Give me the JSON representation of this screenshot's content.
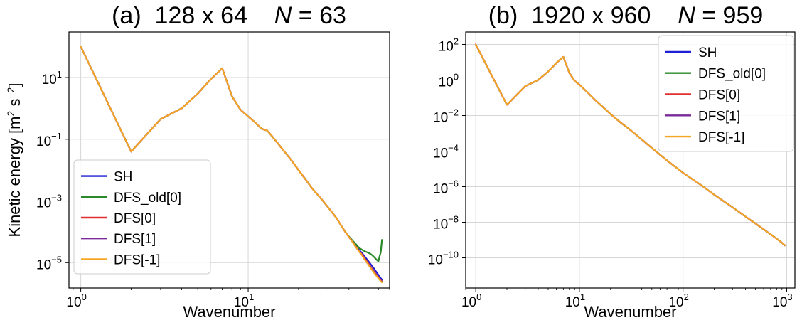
{
  "chart_data": [
    {
      "type": "line",
      "title": "(a)  128 x 64    N = 63",
      "title_parts": {
        "prefix": "(a)  128 x 64    ",
        "var": "N",
        "suffix": " = 63"
      },
      "xlabel": "Wavenumber",
      "ylabel": "Kinetic energy [m² s⁻²]",
      "ylabel_parts": {
        "main": "Kinetic energy [m",
        "sup1": "2",
        "mid": " s",
        "sup2": "−2",
        "end": "]"
      },
      "xscale": "log",
      "yscale": "log",
      "xlim": [
        0.85,
        70
      ],
      "ylim": [
        1.5e-06,
        300
      ],
      "xticks": [
        1,
        10
      ],
      "xtick_labels": [
        {
          "base": "10",
          "exp": "0"
        },
        {
          "base": "10",
          "exp": "1"
        }
      ],
      "yticks": [
        1e-05,
        0.001,
        0.1,
        10
      ],
      "ytick_labels": [
        {
          "base": "10",
          "exp": "−5"
        },
        {
          "base": "10",
          "exp": "−3"
        },
        {
          "base": "10",
          "exp": "−1"
        },
        {
          "base": "10",
          "exp": "1"
        }
      ],
      "grid": true,
      "legend_position": "lower-left",
      "series": [
        {
          "name": "SH",
          "color": "#1f1fd6",
          "x": [
            1,
            2,
            3,
            4,
            5,
            6,
            7,
            8,
            9,
            10,
            11,
            12,
            13,
            14,
            15,
            16,
            18,
            20,
            22,
            24,
            26,
            28,
            30,
            32,
            34,
            36,
            38,
            40,
            42,
            44,
            46,
            48,
            50,
            52,
            54,
            56,
            58,
            60,
            62,
            63
          ],
          "y": [
            100,
            0.04,
            0.45,
            1.0,
            3.0,
            9.0,
            20.0,
            2.5,
            0.9,
            0.55,
            0.35,
            0.22,
            0.19,
            0.12,
            0.075,
            0.048,
            0.022,
            0.01,
            0.005,
            0.0026,
            0.0016,
            0.001,
            0.00062,
            0.0004,
            0.00026,
            0.000155,
            0.0001,
            6.8e-05,
            5e-05,
            3.6e-05,
            2.6e-05,
            2e-05,
            1.5e-05,
            1.15e-05,
            8.8e-06,
            6.8e-06,
            5.2e-06,
            4e-06,
            3.1e-06,
            2.8e-06
          ]
        },
        {
          "name": "DFS_old[0]",
          "color": "#2a8a2a",
          "x": [
            1,
            2,
            3,
            4,
            5,
            6,
            7,
            8,
            9,
            10,
            11,
            12,
            13,
            14,
            15,
            16,
            18,
            20,
            22,
            24,
            26,
            28,
            30,
            32,
            34,
            36,
            38,
            40,
            42,
            44,
            46,
            48,
            50,
            52,
            54,
            56,
            58,
            60,
            61,
            62,
            63
          ],
          "y": [
            100,
            0.04,
            0.45,
            1.0,
            3.0,
            9.0,
            20.0,
            2.5,
            0.9,
            0.55,
            0.35,
            0.22,
            0.19,
            0.12,
            0.075,
            0.048,
            0.022,
            0.01,
            0.005,
            0.0026,
            0.0016,
            0.001,
            0.00062,
            0.0004,
            0.00026,
            0.000155,
            0.0001,
            7e-05,
            5.2e-05,
            4e-05,
            3e-05,
            2.6e-05,
            2.3e-05,
            2.1e-05,
            1.9e-05,
            1.6e-05,
            1.3e-05,
            1.1e-05,
            1.6e-05,
            2.2e-05,
            5.5e-05
          ]
        },
        {
          "name": "DFS[0]",
          "color": "#e03030",
          "x": [
            1,
            2,
            3,
            4,
            5,
            6,
            7,
            8,
            9,
            10,
            11,
            12,
            13,
            14,
            15,
            16,
            18,
            20,
            22,
            24,
            26,
            28,
            30,
            32,
            34,
            36,
            38,
            40,
            42,
            44,
            46,
            48,
            50,
            52,
            54,
            56,
            58,
            60,
            62,
            63
          ],
          "y": [
            100,
            0.04,
            0.45,
            1.0,
            3.0,
            9.0,
            20.0,
            2.5,
            0.9,
            0.55,
            0.35,
            0.22,
            0.19,
            0.12,
            0.075,
            0.048,
            0.022,
            0.01,
            0.005,
            0.0026,
            0.0016,
            0.001,
            0.00062,
            0.0004,
            0.00026,
            0.000155,
            0.0001,
            6.8e-05,
            4.8e-05,
            3.3e-05,
            2.4e-05,
            1.8e-05,
            1.3e-05,
            9.8e-06,
            7.2e-06,
            5.5e-06,
            4.2e-06,
            3.4e-06,
            2.7e-06,
            2.5e-06
          ]
        },
        {
          "name": "DFS[1]",
          "color": "#7a2a9a",
          "x": [
            1,
            2,
            3,
            4,
            5,
            6,
            7,
            8,
            9,
            10,
            11,
            12,
            13,
            14,
            15,
            16,
            18,
            20,
            22,
            24,
            26,
            28,
            30,
            32,
            34,
            36,
            38,
            40,
            42,
            44,
            46,
            48,
            50,
            52,
            54,
            56,
            58,
            60,
            62,
            63
          ],
          "y": [
            100,
            0.04,
            0.45,
            1.0,
            3.0,
            9.0,
            20.0,
            2.5,
            0.9,
            0.55,
            0.35,
            0.22,
            0.19,
            0.12,
            0.075,
            0.048,
            0.022,
            0.01,
            0.005,
            0.0026,
            0.0016,
            0.001,
            0.00062,
            0.0004,
            0.00026,
            0.000155,
            0.0001,
            6.7e-05,
            4.7e-05,
            3.2e-05,
            2.3e-05,
            1.7e-05,
            1.2e-05,
            9.2e-06,
            6.8e-06,
            5.2e-06,
            4e-06,
            3.2e-06,
            2.6e-06,
            2.4e-06
          ]
        },
        {
          "name": "DFS[-1]",
          "color": "#f5a623",
          "x": [
            1,
            2,
            3,
            4,
            5,
            6,
            7,
            8,
            9,
            10,
            11,
            12,
            13,
            14,
            15,
            16,
            18,
            20,
            22,
            24,
            26,
            28,
            30,
            32,
            34,
            36,
            38,
            40,
            42,
            44,
            46,
            48,
            50,
            52,
            54,
            56,
            58,
            60,
            62,
            63
          ],
          "y": [
            100,
            0.04,
            0.45,
            1.0,
            3.0,
            9.0,
            20.0,
            2.5,
            0.9,
            0.55,
            0.35,
            0.22,
            0.19,
            0.12,
            0.075,
            0.048,
            0.022,
            0.01,
            0.005,
            0.0026,
            0.0016,
            0.001,
            0.00062,
            0.0004,
            0.00026,
            0.000155,
            0.0001,
            6.7e-05,
            4.7e-05,
            3.2e-05,
            2.3e-05,
            1.7e-05,
            1.2e-05,
            9e-06,
            6.6e-06,
            5e-06,
            3.9e-06,
            3.1e-06,
            2.5e-06,
            2.3e-06
          ]
        }
      ]
    },
    {
      "type": "line",
      "title": "(b)  1920 x 960    N = 959",
      "title_parts": {
        "prefix": "(b)  1920 x 960    ",
        "var": "N",
        "suffix": " = 959"
      },
      "xlabel": "Wavenumber",
      "ylabel": "",
      "xscale": "log",
      "yscale": "log",
      "xlim": [
        0.8,
        1200
      ],
      "ylim": [
        2e-12,
        500
      ],
      "xticks": [
        1,
        10,
        100,
        1000
      ],
      "xtick_labels": [
        {
          "base": "10",
          "exp": "0"
        },
        {
          "base": "10",
          "exp": "1"
        },
        {
          "base": "10",
          "exp": "2"
        },
        {
          "base": "10",
          "exp": "3"
        }
      ],
      "yticks": [
        1e-10,
        1e-08,
        1e-06,
        0.0001,
        0.01,
        1,
        100
      ],
      "ytick_labels": [
        {
          "base": "10",
          "exp": "−10"
        },
        {
          "base": "10",
          "exp": "−8"
        },
        {
          "base": "10",
          "exp": "−6"
        },
        {
          "base": "10",
          "exp": "−4"
        },
        {
          "base": "10",
          "exp": "−2"
        },
        {
          "base": "10",
          "exp": "0"
        },
        {
          "base": "10",
          "exp": "2"
        }
      ],
      "grid": true,
      "legend_position": "upper-right",
      "series": [
        {
          "name": "SH",
          "color": "#1f1fd6",
          "x": [
            1,
            2,
            3,
            4,
            5,
            6,
            7,
            8,
            9,
            10,
            12,
            14,
            16,
            20,
            25,
            30,
            40,
            50,
            70,
            100,
            150,
            200,
            300,
            400,
            500,
            600,
            700,
            800,
            900,
            959
          ],
          "y": [
            100,
            0.04,
            0.45,
            1.0,
            3.0,
            9.0,
            20.0,
            2.5,
            0.9,
            0.55,
            0.2,
            0.08,
            0.04,
            0.012,
            0.004,
            0.0018,
            0.00045,
            0.00015,
            3e-05,
            6e-06,
            1.2e-06,
            3.5e-07,
            7e-08,
            2.1e-08,
            8.5e-09,
            4e-09,
            2.1e-09,
            1.2e-09,
            7e-10,
            5e-10
          ]
        },
        {
          "name": "DFS_old[0]",
          "color": "#2a8a2a",
          "x": [
            1,
            2,
            3,
            4,
            5,
            6,
            7,
            8,
            9,
            10,
            12,
            14,
            16,
            20,
            25,
            30,
            40,
            50,
            70,
            100,
            150,
            200,
            300,
            400,
            500,
            600,
            700,
            800,
            900,
            959
          ],
          "y": [
            100,
            0.04,
            0.45,
            1.0,
            3.0,
            9.0,
            20.0,
            2.5,
            0.9,
            0.55,
            0.2,
            0.08,
            0.04,
            0.012,
            0.004,
            0.0018,
            0.00045,
            0.00015,
            3e-05,
            6e-06,
            1.2e-06,
            3.5e-07,
            7e-08,
            2.1e-08,
            8.5e-09,
            4e-09,
            2.1e-09,
            1.2e-09,
            7e-10,
            5e-10
          ]
        },
        {
          "name": "DFS[0]",
          "color": "#e03030",
          "x": [
            1,
            2,
            3,
            4,
            5,
            6,
            7,
            8,
            9,
            10,
            12,
            14,
            16,
            20,
            25,
            30,
            40,
            50,
            70,
            100,
            150,
            200,
            300,
            400,
            500,
            600,
            700,
            800,
            900,
            959
          ],
          "y": [
            100,
            0.04,
            0.45,
            1.0,
            3.0,
            9.0,
            20.0,
            2.5,
            0.9,
            0.55,
            0.2,
            0.08,
            0.04,
            0.012,
            0.004,
            0.0018,
            0.00045,
            0.00015,
            3e-05,
            6e-06,
            1.2e-06,
            3.5e-07,
            7e-08,
            2.1e-08,
            8.5e-09,
            4e-09,
            2.1e-09,
            1.2e-09,
            7e-10,
            5e-10
          ]
        },
        {
          "name": "DFS[1]",
          "color": "#7a2a9a",
          "x": [
            1,
            2,
            3,
            4,
            5,
            6,
            7,
            8,
            9,
            10,
            12,
            14,
            16,
            20,
            25,
            30,
            40,
            50,
            70,
            100,
            150,
            200,
            300,
            400,
            500,
            600,
            700,
            800,
            900,
            959
          ],
          "y": [
            100,
            0.04,
            0.45,
            1.0,
            3.0,
            9.0,
            20.0,
            2.5,
            0.9,
            0.55,
            0.2,
            0.08,
            0.04,
            0.012,
            0.004,
            0.0018,
            0.00045,
            0.00015,
            3e-05,
            6e-06,
            1.2e-06,
            3.5e-07,
            7e-08,
            2.1e-08,
            8.5e-09,
            4e-09,
            2.1e-09,
            1.2e-09,
            7e-10,
            5e-10
          ]
        },
        {
          "name": "DFS[-1]",
          "color": "#f5a623",
          "x": [
            1,
            2,
            3,
            4,
            5,
            6,
            7,
            8,
            9,
            10,
            12,
            14,
            16,
            20,
            25,
            30,
            40,
            50,
            70,
            100,
            150,
            200,
            300,
            400,
            500,
            600,
            700,
            800,
            900,
            959
          ],
          "y": [
            100,
            0.04,
            0.45,
            1.0,
            3.0,
            9.0,
            20.0,
            2.5,
            0.9,
            0.55,
            0.2,
            0.08,
            0.04,
            0.012,
            0.004,
            0.0018,
            0.00045,
            0.00015,
            3e-05,
            6e-06,
            1.2e-06,
            3.5e-07,
            7e-08,
            2.1e-08,
            8.5e-09,
            4e-09,
            2.1e-09,
            1.2e-09,
            7e-10,
            5e-10
          ]
        }
      ]
    }
  ]
}
